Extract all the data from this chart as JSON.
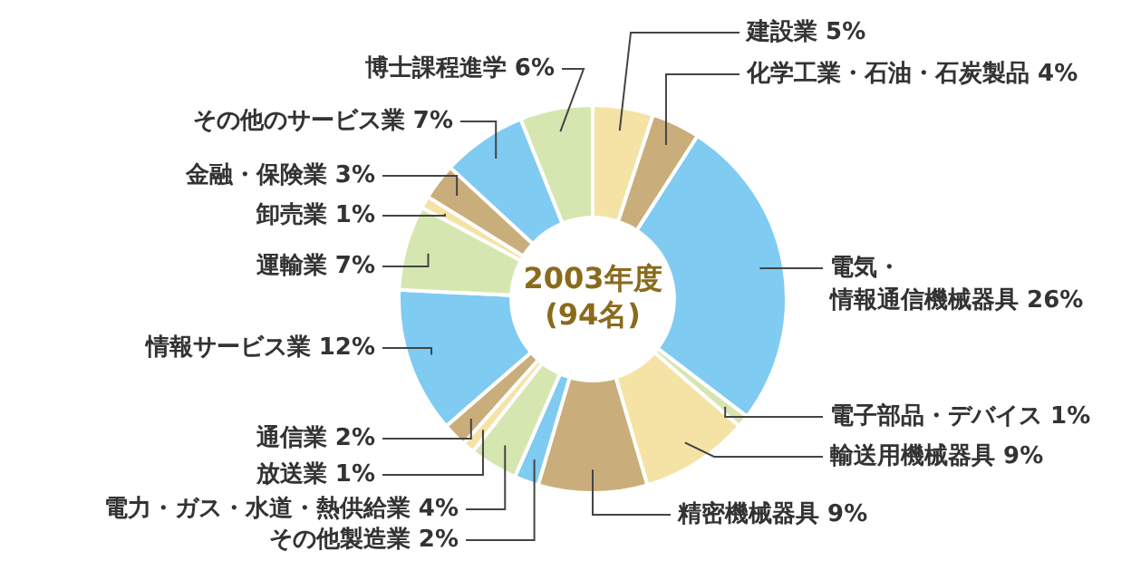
{
  "chart_data": {
    "type": "donut",
    "categories": [
      "建設業",
      "化学工業・石油・石炭製品",
      "電気・情報通信機械器具",
      "電子部品・デバイス",
      "輸送用機械器具",
      "精密機械器具",
      "その他製造業",
      "電力・ガス・水道・熱供給業",
      "放送業",
      "通信業",
      "情報サービス業",
      "運輸業",
      "卸売業",
      "金融・保険業",
      "その他のサービス業",
      "博士課程進学"
    ],
    "values": [
      5,
      4,
      26,
      1,
      9,
      9,
      2,
      4,
      1,
      2,
      12,
      7,
      1,
      3,
      7,
      6
    ],
    "value_labels": [
      "5%",
      "4%",
      "26%",
      "1%",
      "9%",
      "9%",
      "2%",
      "4%",
      "1%",
      "2%",
      "12%",
      "7%",
      "1%",
      "3%",
      "7%",
      "6%"
    ],
    "colors": [
      "#f5e3a6",
      "#c9ae7b",
      "#7fcbf2",
      "#d6e6b0",
      "#f5e3a6",
      "#c9ae7b",
      "#7fcbf2",
      "#d6e6b0",
      "#f5e3a6",
      "#c9ae7b",
      "#7fcbf2",
      "#d6e6b0",
      "#f5e3a6",
      "#c9ae7b",
      "#7fcbf2",
      "#d6e6b0"
    ],
    "annotations": [
      "2003年度",
      "(94名)"
    ],
    "legend": false
  }
}
